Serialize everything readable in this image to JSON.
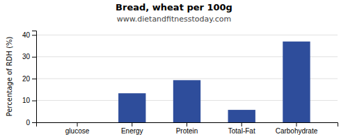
{
  "chart_data": {
    "type": "bar",
    "title": "Bread, wheat per 100g",
    "subtitle": "www.dietandfitnesstoday.com",
    "categories": [
      "glucose",
      "Energy",
      "Protein",
      "Total-Fat",
      "Carbohydrate"
    ],
    "values": [
      0,
      13.3,
      19.3,
      5.7,
      37.0
    ],
    "color": "#2e4d9b",
    "ylabel": "Percentage of RDH (%)",
    "ylim": [
      0,
      42
    ],
    "yticks": [
      0,
      10,
      20,
      30,
      40
    ],
    "grid": true
  }
}
